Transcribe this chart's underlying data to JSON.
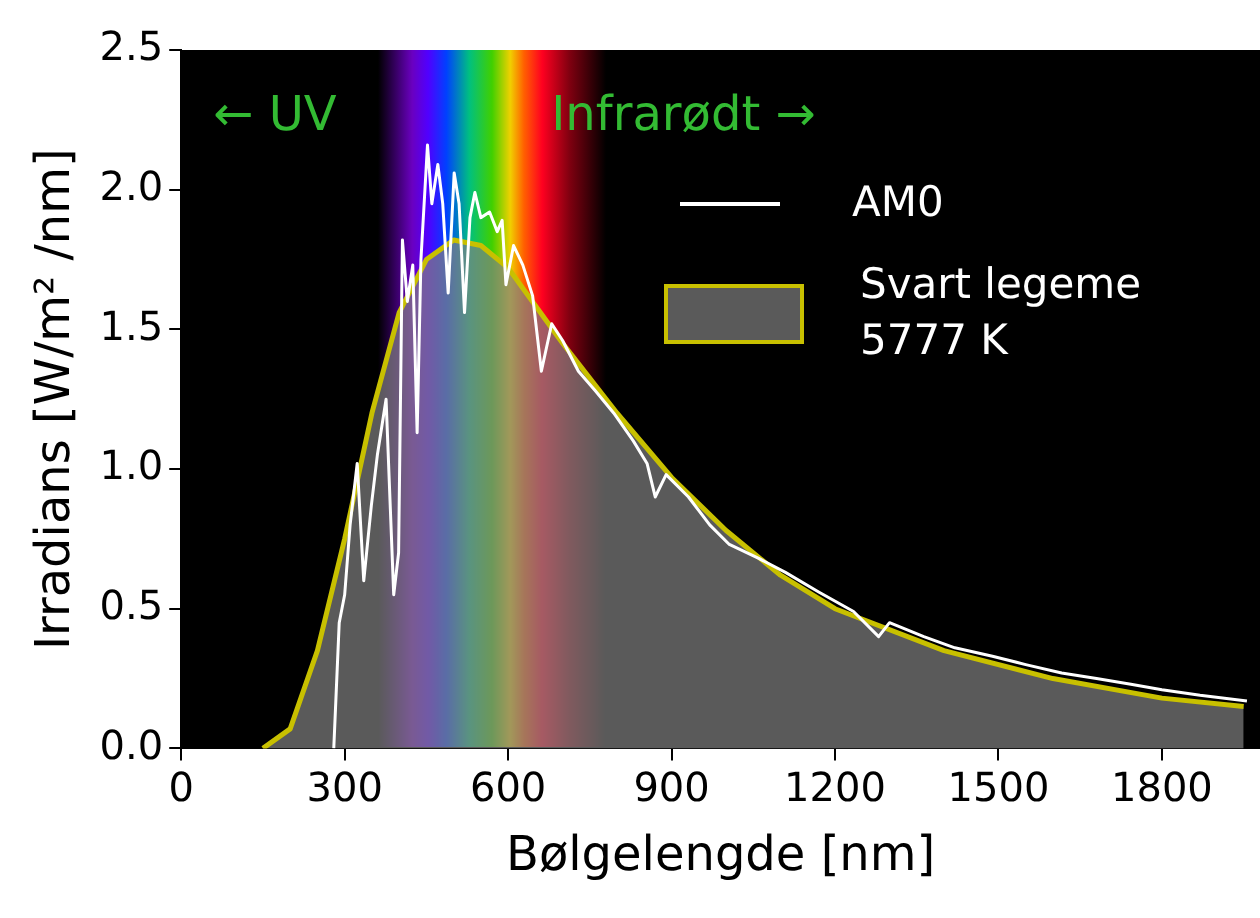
{
  "chart_data": {
    "type": "line",
    "xlabel": "Bølgelengde [nm]",
    "ylabel": "Irradians [W/m² /nm]",
    "xlim": [
      0,
      1980
    ],
    "xticks": [
      0,
      300,
      600,
      900,
      1200,
      1500,
      1800
    ],
    "ylim": [
      0,
      2.5
    ],
    "yticks": [
      {
        "value": 0,
        "label": "0.0"
      },
      0.5,
      {
        "value": 1,
        "label": "1.0"
      },
      1.5,
      {
        "value": 2,
        "label": "2.0"
      },
      2.5
    ],
    "grid": false,
    "legend": "top right",
    "marker": "none",
    "line_style": "solid",
    "annotations": [
      "← UV",
      "Infrarødt →"
    ],
    "bands": [
      {
        "axis": "x",
        "from": 360,
        "to": 780
      }
    ],
    "series": [
      {
        "name": "AM0",
        "type": "line",
        "color": "#ffffff",
        "x": [
          280,
          290,
          300,
          310,
          323,
          335,
          349,
          360,
          376,
          390,
          399,
          406,
          415,
          425,
          433,
          440,
          452,
          460,
          471,
          480,
          490,
          501,
          510,
          520,
          530,
          539,
          550,
          566,
          580,
          589,
          596,
          610,
          627,
          645,
          661,
          680,
          700,
          729,
          760,
          794,
          830,
          855,
          870,
          890,
          931,
          970,
          1006,
          1060,
          1109,
          1170,
          1234,
          1280,
          1300,
          1363,
          1420,
          1489,
          1550,
          1616,
          1680,
          1743,
          1800,
          1870,
          1956
        ],
        "values": [
          0,
          0.45,
          0.55,
          0.8,
          1.02,
          0.6,
          0.87,
          1.05,
          1.25,
          0.55,
          0.7,
          1.82,
          1.6,
          1.73,
          1.13,
          1.75,
          2.16,
          1.95,
          2.09,
          1.95,
          1.63,
          2.06,
          1.95,
          1.56,
          1.9,
          1.99,
          1.9,
          1.92,
          1.85,
          1.89,
          1.66,
          1.8,
          1.73,
          1.62,
          1.35,
          1.52,
          1.46,
          1.35,
          1.28,
          1.2,
          1.1,
          1.02,
          0.9,
          0.98,
          0.9,
          0.8,
          0.73,
          0.68,
          0.63,
          0.56,
          0.49,
          0.4,
          0.45,
          0.4,
          0.36,
          0.33,
          0.3,
          0.27,
          0.25,
          0.23,
          0.21,
          0.19,
          0.17
        ]
      },
      {
        "name": "Svart legeme 5777 K",
        "type": "area",
        "color": "#c8c000",
        "x": [
          150,
          200,
          250,
          300,
          350,
          400,
          450,
          500,
          550,
          600,
          700,
          800,
          900,
          1000,
          1100,
          1200,
          1400,
          1600,
          1800,
          1950
        ],
        "values": [
          0,
          0.07,
          0.35,
          0.75,
          1.2,
          1.56,
          1.75,
          1.82,
          1.8,
          1.72,
          1.45,
          1.2,
          0.97,
          0.78,
          0.62,
          0.5,
          0.35,
          0.25,
          0.18,
          0.15
        ]
      }
    ]
  }
}
